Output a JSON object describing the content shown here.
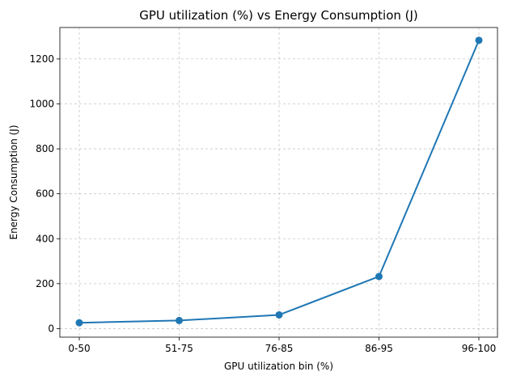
{
  "chart_data": {
    "type": "line",
    "title": "GPU utilization (%) vs Energy Consumption (J)",
    "xlabel": "GPU utilization bin (%)",
    "ylabel": "Energy Consumption (J)",
    "categories": [
      "0-50",
      "51-75",
      "76-85",
      "86-95",
      "96-100"
    ],
    "series": [
      {
        "name": "Energy Consumption",
        "values": [
          26,
          36,
          61,
          232,
          1283
        ],
        "color": "#1f77b4",
        "marker": "circle"
      }
    ],
    "ylim": [
      -38,
      1340
    ],
    "yticks": [
      0,
      200,
      400,
      600,
      800,
      1000,
      1200
    ],
    "grid": true,
    "legend": "none"
  }
}
